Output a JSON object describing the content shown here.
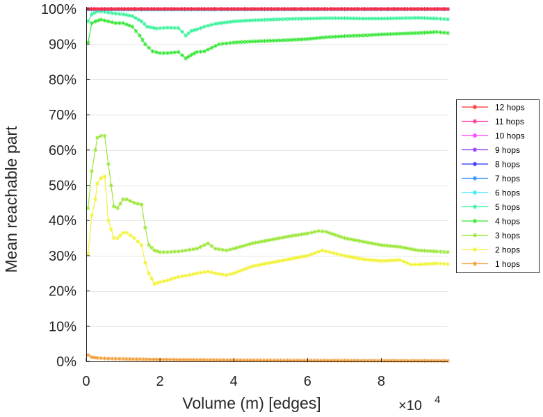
{
  "chart_data": {
    "type": "line",
    "title": "",
    "xlabel": "Volume (m) [edges]",
    "ylabel": "Mean reachable part",
    "x_exponent_label": "×10",
    "x_exponent": "4",
    "xlim": [
      0,
      98000
    ],
    "ylim": [
      0,
      100
    ],
    "grid": true,
    "legend_position": "right",
    "x_ticks": [
      {
        "value": 0,
        "label": "0"
      },
      {
        "value": 20000,
        "label": "2"
      },
      {
        "value": 40000,
        "label": "4"
      },
      {
        "value": 60000,
        "label": "6"
      },
      {
        "value": 80000,
        "label": "8"
      }
    ],
    "y_ticks": [
      {
        "value": 0,
        "label": "0%"
      },
      {
        "value": 10,
        "label": "10%"
      },
      {
        "value": 20,
        "label": "20%"
      },
      {
        "value": 30,
        "label": "30%"
      },
      {
        "value": 40,
        "label": "40%"
      },
      {
        "value": 50,
        "label": "50%"
      },
      {
        "value": 60,
        "label": "60%"
      },
      {
        "value": 70,
        "label": "70%"
      },
      {
        "value": 80,
        "label": "80%"
      },
      {
        "value": 90,
        "label": "90%"
      },
      {
        "value": 100,
        "label": "100%"
      }
    ],
    "series": [
      {
        "name": "12 hops",
        "color": "#ff2a2a",
        "values": [
          [
            500,
            100
          ],
          [
            98000,
            100
          ]
        ]
      },
      {
        "name": "11 hops",
        "color": "#ff2a9a",
        "values": [
          [
            500,
            100
          ],
          [
            98000,
            100
          ]
        ]
      },
      {
        "name": "10 hops",
        "color": "#ff33ff",
        "values": [
          [
            500,
            100
          ],
          [
            98000,
            100
          ]
        ]
      },
      {
        "name": "9 hops",
        "color": "#8a33ff",
        "values": [
          [
            500,
            100
          ],
          [
            98000,
            100
          ]
        ]
      },
      {
        "name": "8 hops",
        "color": "#2a2aff",
        "values": [
          [
            500,
            100
          ],
          [
            98000,
            100
          ]
        ]
      },
      {
        "name": "7 hops",
        "color": "#2a8aff",
        "values": [
          [
            500,
            100
          ],
          [
            98000,
            100
          ]
        ]
      },
      {
        "name": "6 hops",
        "color": "#33e6ff",
        "values": [
          [
            500,
            99.8
          ],
          [
            98000,
            99.9
          ]
        ]
      },
      {
        "name": "5 hops",
        "color": "#33f299",
        "values": [
          [
            500,
            96.5
          ],
          [
            1500,
            98.5
          ],
          [
            3000,
            99.3
          ],
          [
            5000,
            99.2
          ],
          [
            7000,
            98.8
          ],
          [
            10000,
            98.5
          ],
          [
            12500,
            98
          ],
          [
            15000,
            96.5
          ],
          [
            16500,
            95
          ],
          [
            19000,
            94.5
          ],
          [
            22000,
            94.7
          ],
          [
            25000,
            94.6
          ],
          [
            27000,
            92.5
          ],
          [
            28500,
            93.8
          ],
          [
            30000,
            94.2
          ],
          [
            32000,
            95
          ],
          [
            35000,
            95.8
          ],
          [
            40000,
            96.5
          ],
          [
            45000,
            96.8
          ],
          [
            50000,
            97
          ],
          [
            55000,
            97.2
          ],
          [
            60000,
            97.3
          ],
          [
            65000,
            97.4
          ],
          [
            70000,
            97.4
          ],
          [
            75000,
            97.3
          ],
          [
            80000,
            97.3
          ],
          [
            85000,
            97.4
          ],
          [
            90000,
            97.5
          ],
          [
            95000,
            97.3
          ],
          [
            98000,
            97.1
          ]
        ]
      },
      {
        "name": "4 hops",
        "color": "#33e633",
        "values": [
          [
            500,
            90.5
          ],
          [
            1500,
            96
          ],
          [
            2500,
            96.5
          ],
          [
            4000,
            97
          ],
          [
            6000,
            96.5
          ],
          [
            8000,
            96
          ],
          [
            10000,
            96
          ],
          [
            12500,
            95
          ],
          [
            14500,
            92.5
          ],
          [
            16000,
            90
          ],
          [
            18000,
            88
          ],
          [
            20000,
            87.5
          ],
          [
            22000,
            87.5
          ],
          [
            25000,
            87.8
          ],
          [
            27000,
            86
          ],
          [
            28500,
            87
          ],
          [
            30000,
            87.8
          ],
          [
            32000,
            88
          ],
          [
            34000,
            89
          ],
          [
            36000,
            90
          ],
          [
            40000,
            90.5
          ],
          [
            45000,
            90.8
          ],
          [
            50000,
            91
          ],
          [
            55000,
            91.2
          ],
          [
            60000,
            91.5
          ],
          [
            65000,
            92
          ],
          [
            70000,
            92.3
          ],
          [
            75000,
            92.5
          ],
          [
            80000,
            92.8
          ],
          [
            85000,
            93
          ],
          [
            90000,
            93.2
          ],
          [
            95000,
            93.5
          ],
          [
            98000,
            93.2
          ]
        ]
      },
      {
        "name": "3 hops",
        "color": "#99e633",
        "values": [
          [
            500,
            43.5
          ],
          [
            1500,
            54
          ],
          [
            2500,
            60
          ],
          [
            3000,
            63.5
          ],
          [
            4000,
            64
          ],
          [
            5000,
            64
          ],
          [
            6000,
            56
          ],
          [
            7500,
            44
          ],
          [
            8500,
            43.5
          ],
          [
            10000,
            46
          ],
          [
            11000,
            46
          ],
          [
            13000,
            45
          ],
          [
            15000,
            44.5
          ],
          [
            16000,
            38
          ],
          [
            17000,
            33
          ],
          [
            18500,
            31.5
          ],
          [
            20000,
            31
          ],
          [
            22000,
            31
          ],
          [
            25000,
            31.2
          ],
          [
            27000,
            31.5
          ],
          [
            30000,
            32
          ],
          [
            33000,
            33.5
          ],
          [
            35000,
            32
          ],
          [
            38000,
            31.5
          ],
          [
            40000,
            32
          ],
          [
            45000,
            33.5
          ],
          [
            50000,
            34.5
          ],
          [
            55000,
            35.5
          ],
          [
            60000,
            36.3
          ],
          [
            63000,
            37
          ],
          [
            65000,
            36.8
          ],
          [
            70000,
            35
          ],
          [
            75000,
            34
          ],
          [
            80000,
            33
          ],
          [
            85000,
            32.5
          ],
          [
            90000,
            31.5
          ],
          [
            95000,
            31.2
          ],
          [
            98000,
            31
          ]
        ]
      },
      {
        "name": "2 hops",
        "color": "#f2f233",
        "values": [
          [
            500,
            30.5
          ],
          [
            1500,
            41.5
          ],
          [
            2500,
            46
          ],
          [
            3000,
            50.5
          ],
          [
            4000,
            52
          ],
          [
            5000,
            52.5
          ],
          [
            6000,
            40
          ],
          [
            7500,
            35
          ],
          [
            8500,
            35
          ],
          [
            10000,
            36.5
          ],
          [
            11000,
            36.5
          ],
          [
            13000,
            35
          ],
          [
            15000,
            33
          ],
          [
            16000,
            28
          ],
          [
            17000,
            25
          ],
          [
            18500,
            22
          ],
          [
            20000,
            22.5
          ],
          [
            22000,
            23
          ],
          [
            25000,
            24
          ],
          [
            28000,
            24.5
          ],
          [
            30000,
            25
          ],
          [
            33000,
            25.5
          ],
          [
            35000,
            25
          ],
          [
            38000,
            24.5
          ],
          [
            40000,
            25
          ],
          [
            45000,
            27
          ],
          [
            50000,
            28
          ],
          [
            55000,
            29
          ],
          [
            60000,
            30
          ],
          [
            64000,
            31.5
          ],
          [
            66000,
            31
          ],
          [
            70000,
            30
          ],
          [
            75000,
            29
          ],
          [
            80000,
            28.5
          ],
          [
            85000,
            28.8
          ],
          [
            88000,
            27.5
          ],
          [
            90000,
            27.5
          ],
          [
            95000,
            27.8
          ],
          [
            98000,
            27.6
          ]
        ]
      },
      {
        "name": "1 hops",
        "color": "#f29933",
        "values": [
          [
            500,
            1.8
          ],
          [
            1500,
            1.2
          ],
          [
            3000,
            1
          ],
          [
            6000,
            0.8
          ],
          [
            10000,
            0.7
          ],
          [
            20000,
            0.5
          ],
          [
            40000,
            0.35
          ],
          [
            60000,
            0.25
          ],
          [
            80000,
            0.2
          ],
          [
            98000,
            0.15
          ]
        ]
      }
    ]
  }
}
